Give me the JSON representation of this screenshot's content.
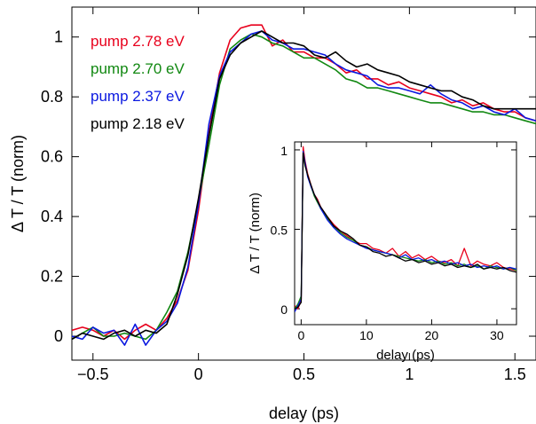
{
  "chart_data": [
    {
      "type": "line",
      "title": "",
      "xlabel": "delay (ps)",
      "ylabel": "Δ T / T (norm)",
      "xlim": [
        -0.6,
        1.6
      ],
      "ylim": [
        -0.08,
        1.1
      ],
      "xticks": [
        -0.5,
        0,
        0.5,
        1,
        1.5
      ],
      "xtick_labels": [
        "−0.5",
        "0",
        "0.5",
        "1",
        "1.5"
      ],
      "yticks": [
        0,
        0.2,
        0.4,
        0.6,
        0.8,
        1
      ],
      "ytick_labels": [
        "0",
        "0.2",
        "0.4",
        "0.6",
        "0.8",
        "1"
      ],
      "grid": false,
      "legend_position": "top-left",
      "x": [
        -0.6,
        -0.55,
        -0.5,
        -0.45,
        -0.4,
        -0.35,
        -0.3,
        -0.25,
        -0.2,
        -0.15,
        -0.1,
        -0.05,
        0,
        0.05,
        0.1,
        0.15,
        0.2,
        0.25,
        0.3,
        0.35,
        0.4,
        0.45,
        0.5,
        0.55,
        0.6,
        0.65,
        0.7,
        0.75,
        0.8,
        0.85,
        0.9,
        0.95,
        1,
        1.05,
        1.1,
        1.15,
        1.2,
        1.25,
        1.3,
        1.35,
        1.4,
        1.45,
        1.5,
        1.55,
        1.6
      ],
      "series": [
        {
          "name": "pump 2.78 eV",
          "color": "#e8001c",
          "values": [
            0.02,
            0.03,
            0.02,
            0.0,
            0.02,
            -0.01,
            0.02,
            0.04,
            0.02,
            0.06,
            0.12,
            0.22,
            0.42,
            0.68,
            0.88,
            0.99,
            1.03,
            1.04,
            1.04,
            0.97,
            0.99,
            0.95,
            0.95,
            0.93,
            0.93,
            0.91,
            0.88,
            0.89,
            0.86,
            0.86,
            0.84,
            0.85,
            0.83,
            0.82,
            0.81,
            0.8,
            0.78,
            0.79,
            0.77,
            0.78,
            0.76,
            0.75,
            0.75,
            0.73,
            0.72
          ]
        },
        {
          "name": "pump 2.70 eV",
          "color": "#118811",
          "values": [
            -0.01,
            0.01,
            0.03,
            0.0,
            0.0,
            0.01,
            0.0,
            -0.01,
            0.02,
            0.08,
            0.15,
            0.28,
            0.45,
            0.64,
            0.84,
            0.96,
            0.99,
            1.01,
            1.0,
            0.98,
            0.97,
            0.95,
            0.93,
            0.93,
            0.91,
            0.89,
            0.86,
            0.85,
            0.83,
            0.83,
            0.82,
            0.81,
            0.8,
            0.79,
            0.78,
            0.78,
            0.77,
            0.76,
            0.75,
            0.75,
            0.74,
            0.74,
            0.73,
            0.72,
            0.71
          ]
        },
        {
          "name": "pump 2.37 eV",
          "color": "#0a18e0",
          "values": [
            0.0,
            -0.01,
            0.03,
            0.01,
            0.02,
            -0.03,
            0.04,
            -0.03,
            0.02,
            0.05,
            0.11,
            0.23,
            0.44,
            0.71,
            0.87,
            0.95,
            0.98,
            1.01,
            1.02,
            0.99,
            0.98,
            0.96,
            0.96,
            0.95,
            0.94,
            0.91,
            0.89,
            0.88,
            0.87,
            0.84,
            0.83,
            0.83,
            0.82,
            0.81,
            0.84,
            0.81,
            0.79,
            0.78,
            0.76,
            0.77,
            0.75,
            0.74,
            0.76,
            0.73,
            0.72
          ]
        },
        {
          "name": "pump 2.18 eV",
          "color": "#000000",
          "values": [
            -0.01,
            0.01,
            0.0,
            -0.01,
            0.01,
            0.02,
            0.0,
            0.02,
            0.01,
            0.04,
            0.14,
            0.27,
            0.46,
            0.67,
            0.86,
            0.94,
            0.98,
            1.0,
            1.02,
            1.0,
            0.98,
            0.98,
            0.97,
            0.94,
            0.93,
            0.95,
            0.92,
            0.9,
            0.91,
            0.89,
            0.88,
            0.87,
            0.85,
            0.84,
            0.83,
            0.82,
            0.82,
            0.8,
            0.79,
            0.77,
            0.76,
            0.76,
            0.76,
            0.76,
            0.76
          ]
        }
      ]
    },
    {
      "type": "line",
      "title": "",
      "xlabel": "delay (ps)",
      "ylabel": "Δ T / T (norm)",
      "xlim": [
        -1,
        33
      ],
      "ylim": [
        -0.1,
        1.05
      ],
      "xticks": [
        0,
        10,
        20,
        30
      ],
      "xtick_labels": [
        "0",
        "10",
        "20",
        "30"
      ],
      "yticks": [
        0,
        0.5,
        1
      ],
      "ytick_labels": [
        "0",
        "0.5",
        "1"
      ],
      "grid": false,
      "x": [
        -1,
        -0.5,
        0,
        0.3,
        0.6,
        1,
        1.5,
        2,
        2.5,
        3,
        4,
        5,
        6,
        7,
        8,
        9,
        10,
        11,
        12,
        13,
        14,
        15,
        16,
        17,
        18,
        19,
        20,
        21,
        22,
        23,
        24,
        25,
        26,
        27,
        28,
        29,
        30,
        31,
        32,
        33
      ],
      "series": [
        {
          "color": "#e8001c",
          "values": [
            0.02,
            0.0,
            0.05,
            1.02,
            0.93,
            0.85,
            0.78,
            0.72,
            0.69,
            0.64,
            0.58,
            0.53,
            0.49,
            0.46,
            0.43,
            0.41,
            0.41,
            0.38,
            0.37,
            0.35,
            0.38,
            0.33,
            0.36,
            0.32,
            0.34,
            0.31,
            0.33,
            0.3,
            0.29,
            0.31,
            0.27,
            0.38,
            0.27,
            0.3,
            0.28,
            0.27,
            0.29,
            0.26,
            0.25,
            0.24
          ]
        },
        {
          "color": "#118811",
          "values": [
            0.0,
            0.03,
            0.08,
            0.97,
            0.91,
            0.84,
            0.77,
            0.71,
            0.67,
            0.63,
            0.57,
            0.52,
            0.48,
            0.45,
            0.43,
            0.4,
            0.39,
            0.37,
            0.36,
            0.35,
            0.34,
            0.33,
            0.32,
            0.31,
            0.3,
            0.31,
            0.29,
            0.3,
            0.28,
            0.29,
            0.27,
            0.28,
            0.26,
            0.27,
            0.25,
            0.27,
            0.26,
            0.25,
            0.26,
            0.24
          ]
        },
        {
          "color": "#0a18e0",
          "values": [
            -0.02,
            0.02,
            0.06,
            0.99,
            0.92,
            0.83,
            0.77,
            0.72,
            0.68,
            0.63,
            0.56,
            0.51,
            0.47,
            0.44,
            0.42,
            0.4,
            0.38,
            0.37,
            0.36,
            0.35,
            0.34,
            0.32,
            0.34,
            0.31,
            0.32,
            0.3,
            0.31,
            0.29,
            0.3,
            0.28,
            0.29,
            0.27,
            0.28,
            0.26,
            0.27,
            0.26,
            0.27,
            0.25,
            0.26,
            0.25
          ]
        },
        {
          "color": "#000000",
          "values": [
            0.0,
            0.01,
            0.04,
            0.98,
            0.9,
            0.84,
            0.78,
            0.72,
            0.68,
            0.64,
            0.58,
            0.52,
            0.49,
            0.47,
            0.44,
            0.4,
            0.39,
            0.36,
            0.35,
            0.33,
            0.34,
            0.32,
            0.3,
            0.31,
            0.29,
            0.3,
            0.28,
            0.29,
            0.27,
            0.28,
            0.26,
            0.27,
            0.26,
            0.28,
            0.25,
            0.26,
            0.25,
            0.26,
            0.24,
            0.23
          ]
        }
      ]
    }
  ]
}
